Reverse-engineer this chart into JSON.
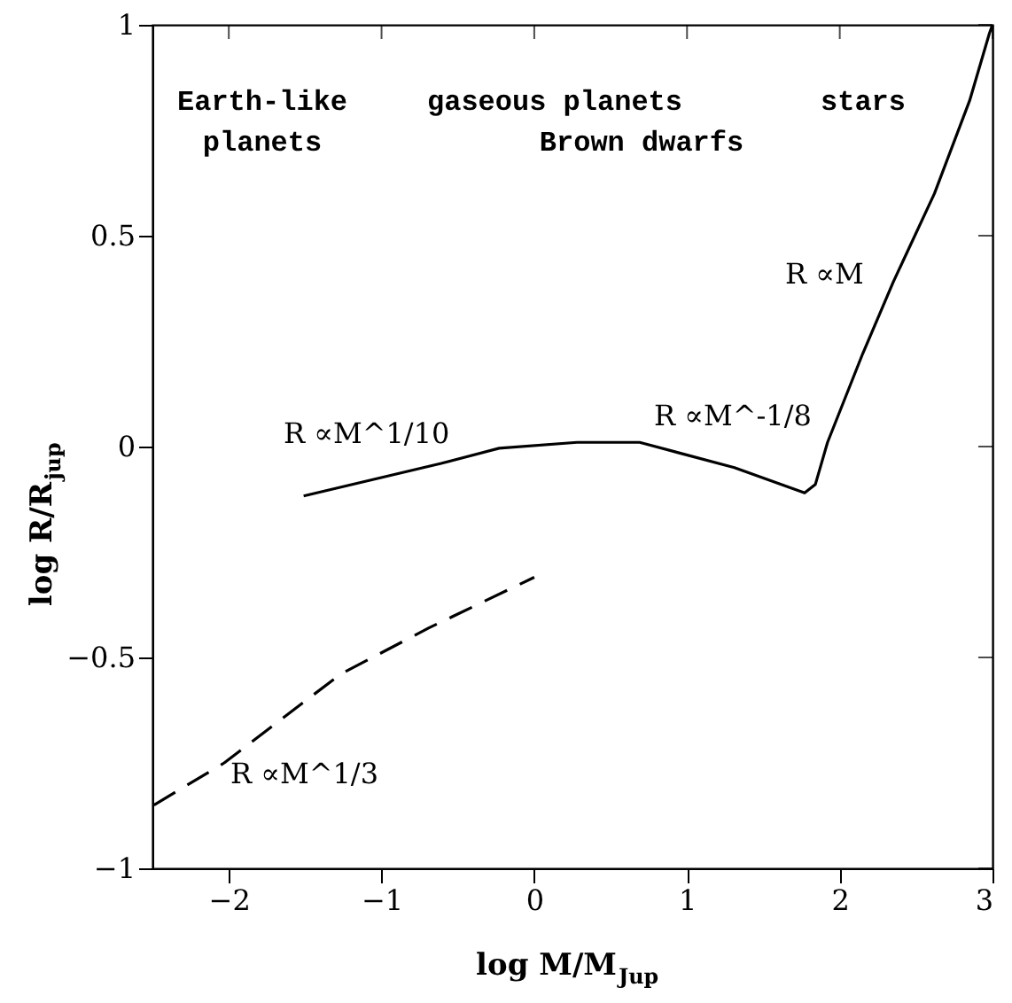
{
  "chart_data": {
    "type": "line",
    "xlabel": "log M/M$_{Jup}$",
    "ylabel": "log R/R$_{jup}$",
    "xlim": [
      -2.5,
      3
    ],
    "ylim": [
      -1,
      1
    ],
    "xticks": [
      -2,
      -1,
      0,
      1,
      2,
      3
    ],
    "yticks": [
      -1,
      -0.5,
      0,
      0.5,
      1
    ],
    "grid": false,
    "marker": "none",
    "series": [
      {
        "color": "#000000",
        "line_style": "solid",
        "x": [
          -1.51,
          -0.61,
          -0.23,
          0.28,
          0.69,
          1.31,
          1.77,
          1.84,
          1.92,
          2.15,
          2.35,
          2.62,
          2.85,
          2.98,
          3.0
        ],
        "values": [
          -0.117,
          -0.04,
          -0.004,
          0.01,
          0.01,
          -0.05,
          -0.11,
          -0.09,
          0.01,
          0.22,
          0.39,
          0.6,
          0.82,
          0.98,
          1.0
        ]
      },
      {
        "color": "#000000",
        "line_style": "dashed",
        "x": [
          -2.49,
          -2.03,
          -1.27,
          -0.69,
          0.0
        ],
        "values": [
          -0.85,
          -0.75,
          -0.54,
          -0.43,
          -0.31
        ]
      }
    ],
    "annotations": [
      "Earth-like\nplanets",
      "gaseous planets",
      "Brown dwarfs",
      "stars",
      "R ∝M^1/10",
      "R ∝M^-1/8",
      "R ∝M",
      "R ∝M^1/3"
    ]
  }
}
